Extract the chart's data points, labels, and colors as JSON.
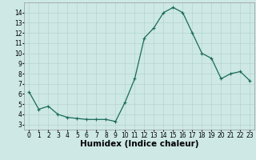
{
  "x": [
    0,
    1,
    2,
    3,
    4,
    5,
    6,
    7,
    8,
    9,
    10,
    11,
    12,
    13,
    14,
    15,
    16,
    17,
    18,
    19,
    20,
    21,
    22,
    23
  ],
  "y": [
    6.2,
    4.5,
    4.8,
    4.0,
    3.7,
    3.6,
    3.5,
    3.5,
    3.5,
    3.3,
    5.2,
    7.5,
    11.5,
    12.5,
    14.0,
    14.5,
    14.0,
    12.0,
    10.0,
    9.5,
    7.5,
    8.0,
    8.2,
    7.3
  ],
  "xlabel": "Humidex (Indice chaleur)",
  "ylim": [
    2.5,
    15.0
  ],
  "xlim": [
    -0.5,
    23.5
  ],
  "yticks": [
    3,
    4,
    5,
    6,
    7,
    8,
    9,
    10,
    11,
    12,
    13,
    14
  ],
  "xticks": [
    0,
    1,
    2,
    3,
    4,
    5,
    6,
    7,
    8,
    9,
    10,
    11,
    12,
    13,
    14,
    15,
    16,
    17,
    18,
    19,
    20,
    21,
    22,
    23
  ],
  "line_color": "#1a6b5a",
  "marker": "+",
  "marker_size": 3,
  "bg_color": "#cde8e5",
  "grid_color": "#b8d4d0",
  "tick_fontsize": 5.5,
  "xlabel_fontsize": 7.5,
  "linewidth": 0.9
}
